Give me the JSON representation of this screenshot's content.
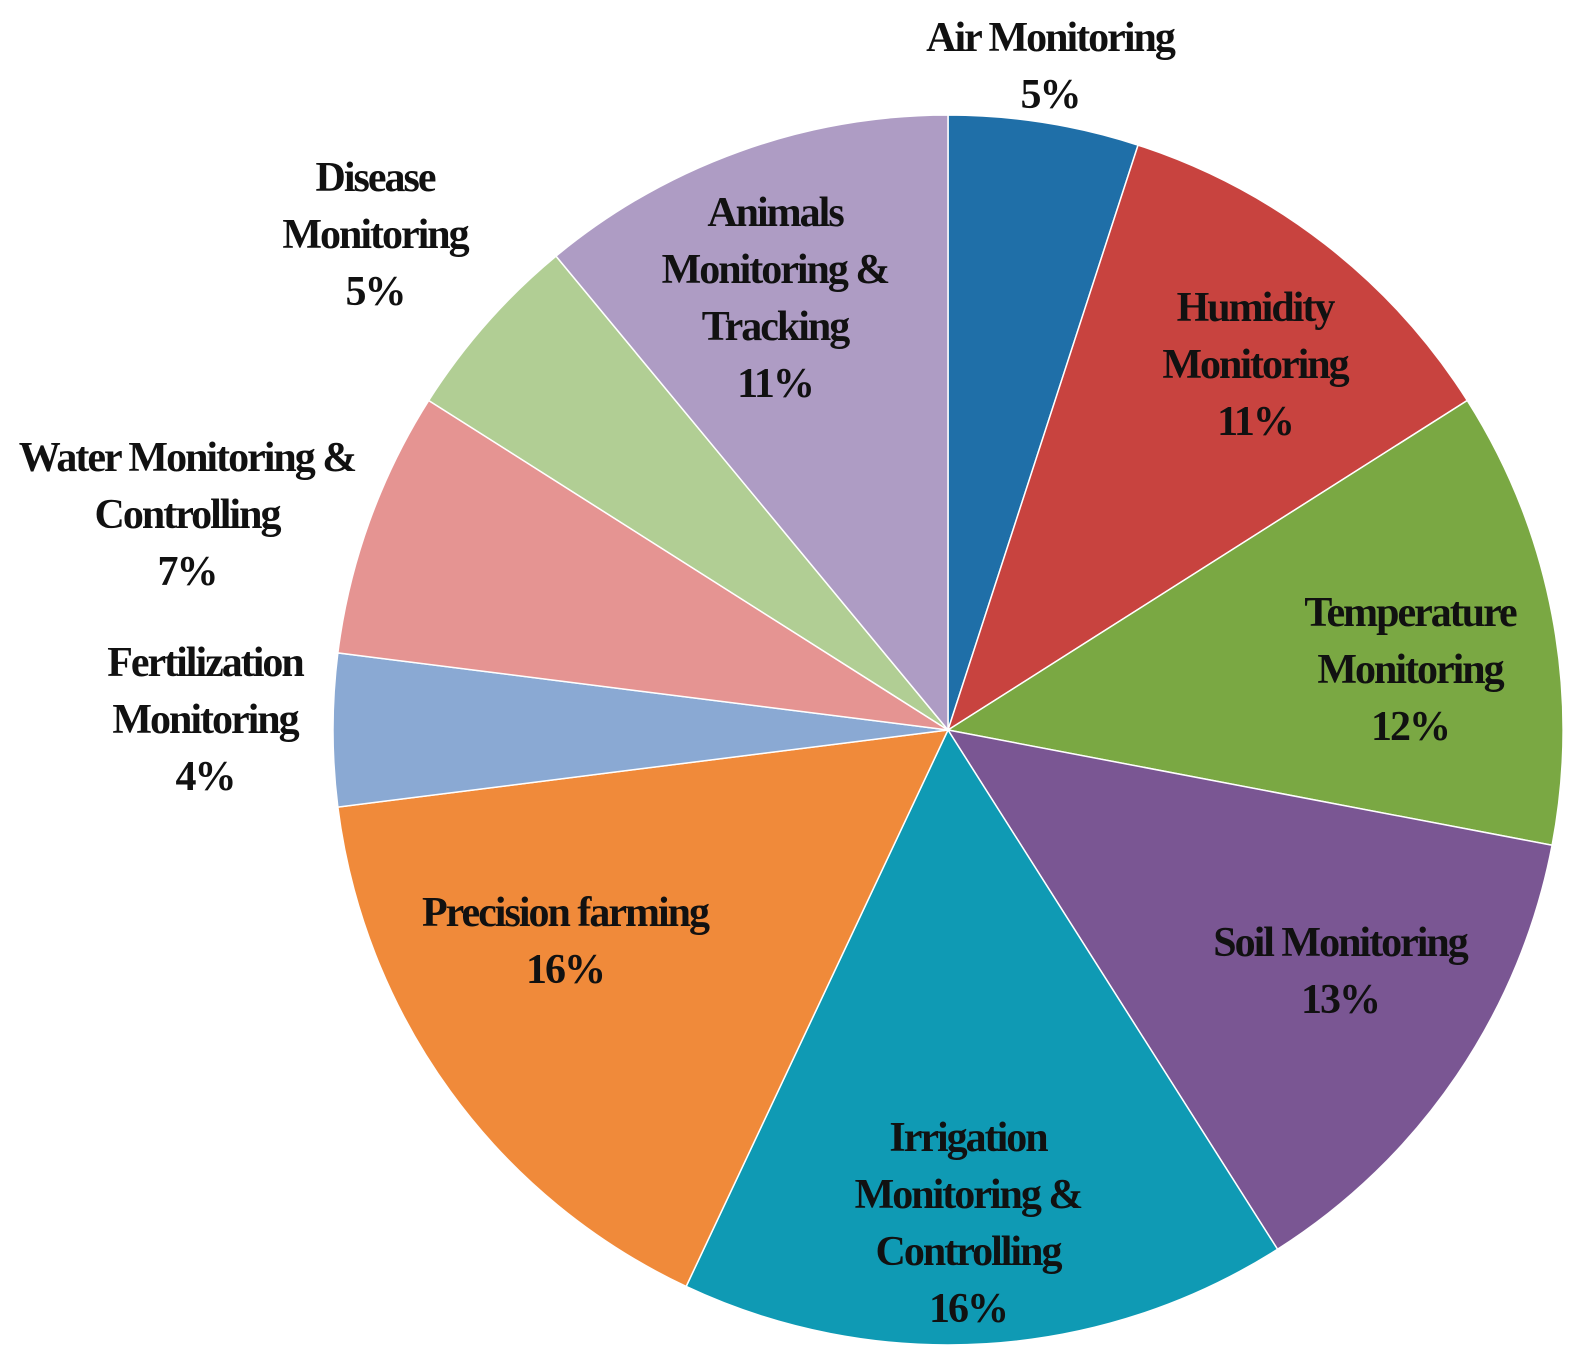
{
  "chart_data": {
    "type": "pie",
    "categories": [
      "Air Monitoring",
      "Humidity Monitoring",
      "Temperature Monitoring",
      "Soil Monitoring",
      "Irrigation Monitoring & Controlling",
      "Precision farming",
      "Fertilization Monitoring",
      "Water Monitoring & Controlling",
      "Disease Monitoring",
      "Animals Monitoring & Tracking"
    ],
    "values": [
      5,
      11,
      12,
      13,
      16,
      16,
      4,
      7,
      5,
      11
    ],
    "value_labels": [
      "5%",
      "11%",
      "12%",
      "13%",
      "16%",
      "16%",
      "4%",
      "7%",
      "5%",
      "11%"
    ],
    "colors": [
      "#1f6fa8",
      "#c8433f",
      "#7aa843",
      "#7a5693",
      "#0f9ab4",
      "#f08a3a",
      "#8aa9d3",
      "#e59492",
      "#b1ce94",
      "#ae9cc4"
    ]
  }
}
